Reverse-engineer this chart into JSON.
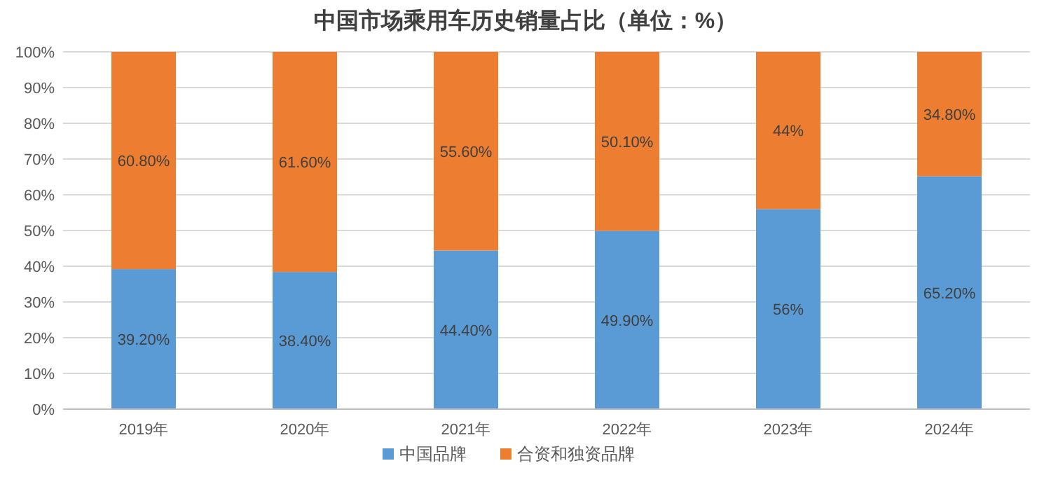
{
  "chart_data": {
    "type": "bar",
    "title": "中国市场乘用车历史销量占比（单位：%）",
    "categories": [
      "2019年",
      "2020年",
      "2021年",
      "2022年",
      "2023年",
      "2024年"
    ],
    "stacked": true,
    "series": [
      {
        "name": "中国品牌",
        "color": "#5b9bd5",
        "values": [
          39.2,
          38.4,
          44.4,
          49.9,
          56,
          65.2
        ],
        "value_labels": [
          "39.20%",
          "38.40%",
          "44.40%",
          "49.90%",
          "56%",
          "65.20%"
        ]
      },
      {
        "name": "合资和独资品牌",
        "color": "#ed7d31",
        "values": [
          60.8,
          61.6,
          55.6,
          50.1,
          44,
          34.8
        ],
        "value_labels": [
          "60.80%",
          "61.60%",
          "55.60%",
          "50.10%",
          "44%",
          "34.80%"
        ]
      }
    ],
    "ylim": [
      0,
      100
    ],
    "yticks": [
      {
        "value": 0,
        "label": "0%"
      },
      {
        "value": 10,
        "label": "10%"
      },
      {
        "value": 20,
        "label": "20%"
      },
      {
        "value": 30,
        "label": "30%"
      },
      {
        "value": 40,
        "label": "40%"
      },
      {
        "value": 50,
        "label": "50%"
      },
      {
        "value": 60,
        "label": "60%"
      },
      {
        "value": 70,
        "label": "70%"
      },
      {
        "value": 80,
        "label": "80%"
      },
      {
        "value": 90,
        "label": "90%"
      },
      {
        "value": 100,
        "label": "100%"
      }
    ],
    "grid": "y",
    "legend": "bottom"
  }
}
